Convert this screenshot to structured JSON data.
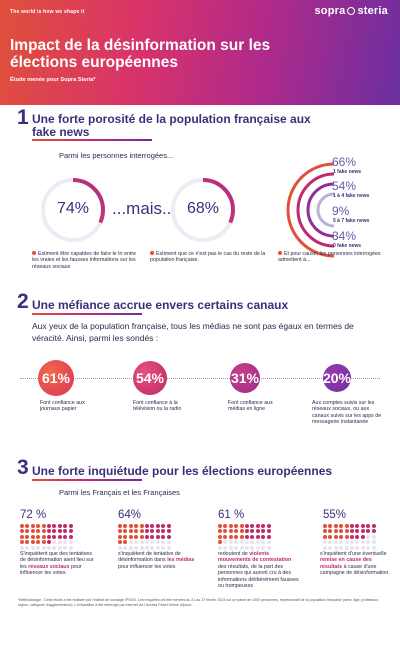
{
  "header": {
    "tagline": "The world is how we shape it",
    "brand": [
      "sopra",
      "steria"
    ],
    "title": "Impact de la désinformation sur les élections européennes",
    "subtitle": "Étude menée pour Sopra Steria*"
  },
  "section1": {
    "number": "1",
    "title": "Une forte porosité de la population française aux fake news",
    "intro": "Parmi les personnes interrogées...",
    "ring_left": "74%",
    "mais": "...mais...",
    "ring_right": "68%",
    "caption_left": "Estiment être capables de faire le tri entre les vraies et les fausses informations sur les réseaux sociaux",
    "caption_mid": "Estiment que ce n'est pas le cas du reste de la population française.",
    "caption_right": "Et pour cause, les personnes interrogées admettent à...",
    "stats": [
      {
        "pct": "66%",
        "label": "1 fake news"
      },
      {
        "pct": "54%",
        "label": "1 à 4 fake news"
      },
      {
        "pct": "9%",
        "label": "5 à 7 fake news"
      },
      {
        "pct": "34%",
        "label": "0 fake news"
      }
    ]
  },
  "section2": {
    "number": "2",
    "title": "Une méfiance accrue envers certains canaux",
    "intro": "Aux yeux de la population française, tous les médias ne sont pas égaux en termes de véracité. Ainsi, parmi les sondés :",
    "items": [
      {
        "pct": "61%",
        "caption": "Font confiance aux journaux papier",
        "color": "#e0503a"
      },
      {
        "pct": "54%",
        "caption": "Font confiance à la télévision ou la radio",
        "color": "#d0356a"
      },
      {
        "pct": "31%",
        "caption": "Font confiance aux médias en ligne",
        "color": "#b02a8a"
      },
      {
        "pct": "20%",
        "caption": "Aux comptes suivis sur les réseaux sociaux, ou aux canaux suivis sur les apps de messagerie instantanée",
        "color": "#7a2fa0"
      }
    ]
  },
  "section3": {
    "number": "3",
    "title": "Une forte inquiétude pour les élections européennes",
    "intro": "Parmi les Français et les Françaises",
    "items": [
      {
        "pct": "72 %",
        "value": 72,
        "pre": "S'inquiètent que des tentatives de désinformation aient lieu sur les ",
        "hl": "réseaux sociaux",
        "post": " pour influencer les votes."
      },
      {
        "pct": "64%",
        "value": 64,
        "pre": "s'inquiètent de tentative de désinformation dans ",
        "hl": "les médias",
        "post": " pour influencer les votes"
      },
      {
        "pct": "61 %",
        "value": 61,
        "pre": "redoutent de ",
        "hl": "violents mouvements de contestation",
        "post": " des résultats, de la part des personnes qui auront cru à des informations délibérément fausses ou trompeuses"
      },
      {
        "pct": "55%",
        "value": 55,
        "pre": "s'inquiètent d'une éventuelle ",
        "hl": "remise en cause des résultats",
        "post": " à cause d'une campagne de désinformation."
      }
    ]
  },
  "footnote": "*Méthodologie : Cette étude a été réalisée par l'institut de sondage IPSOS. Les enquêtes ont été menées du 21 au 27 février 2024 sur un panel de 1000 personnes, représentatif de la population française (sexe, âge, profession, région, catégorie d'agglomération). L'échantillon a été interrogé par internet via l'Access Panel Online d'Ipsos.",
  "colors": {
    "accent_orange": "#e0503a",
    "accent_pink": "#c02a6a",
    "accent_purple": "#6b2fa0",
    "dark_navy": "#3b2f7a"
  }
}
